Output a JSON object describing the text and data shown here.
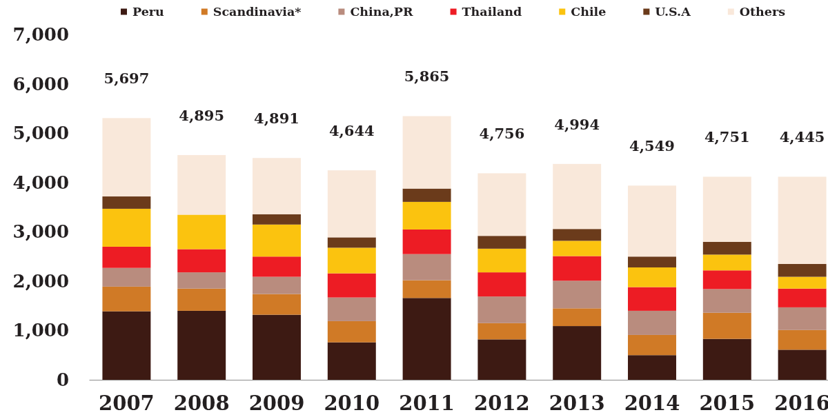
{
  "chart_data": {
    "type": "bar",
    "stacked": true,
    "legend": "top",
    "categories": [
      "2007",
      "2008",
      "2009",
      "2010",
      "2011",
      "2012",
      "2013",
      "2014",
      "2015",
      "2016"
    ],
    "series": [
      {
        "name": "Peru",
        "color": "#3d1a13",
        "values": [
          1390,
          1400,
          1320,
          760,
          1660,
          820,
          1090,
          500,
          830,
          610
        ]
      },
      {
        "name": "Scandinavia*",
        "color": "#d07a26",
        "values": [
          500,
          450,
          420,
          430,
          360,
          330,
          360,
          410,
          530,
          400
        ]
      },
      {
        "name": "China,PR",
        "color": "#b98c7e",
        "values": [
          380,
          330,
          350,
          480,
          530,
          540,
          560,
          490,
          480,
          460
        ]
      },
      {
        "name": "Thailand",
        "color": "#ed1c24",
        "values": [
          430,
          470,
          410,
          490,
          500,
          490,
          500,
          480,
          380,
          380
        ]
      },
      {
        "name": "Chile",
        "color": "#fbc30f",
        "values": [
          770,
          700,
          650,
          520,
          560,
          480,
          310,
          400,
          320,
          240
        ]
      },
      {
        "name": "U.S.A",
        "color": "#6b3b1b",
        "values": [
          250,
          null,
          210,
          210,
          270,
          260,
          240,
          220,
          260,
          260
        ]
      },
      {
        "name": "Others",
        "color": "#f9e8da",
        "values": [
          1590,
          1210,
          1140,
          1360,
          1470,
          1270,
          1320,
          1440,
          1320,
          1770
        ]
      }
    ],
    "ylim": [
      0,
      7000
    ],
    "yticks": [
      0,
      {
        "value": 1000,
        "label": "1,000"
      },
      {
        "value": 2000,
        "label": "2,000"
      },
      {
        "value": 3000,
        "label": "3,000"
      },
      {
        "value": 4000,
        "label": "4,000"
      },
      {
        "value": 5000,
        "label": "5,000"
      },
      {
        "value": 6000,
        "label": "6,000"
      },
      {
        "value": 7000,
        "label": "7,000"
      }
    ],
    "annotations": [
      {
        "text": "5,697",
        "x": "2007",
        "y": 5310
      },
      {
        "text": "4,895",
        "x": "2008",
        "y": 4560
      },
      {
        "text": "4,891",
        "x": "2009",
        "y": 4500
      },
      {
        "text": "4,644",
        "x": "2010",
        "y": 4250
      },
      {
        "text": "5,865",
        "x": "2011",
        "y": 5350
      },
      {
        "text": "4,756",
        "x": "2012",
        "y": 4190
      },
      {
        "text": "4,994",
        "x": "2013",
        "y": 4380
      },
      {
        "text": "4,549",
        "x": "2014",
        "y": 3940
      },
      {
        "text": "4,751",
        "x": "2015",
        "y": 4120
      },
      {
        "text": "4,445",
        "x": "2016",
        "y": 4120
      }
    ]
  }
}
